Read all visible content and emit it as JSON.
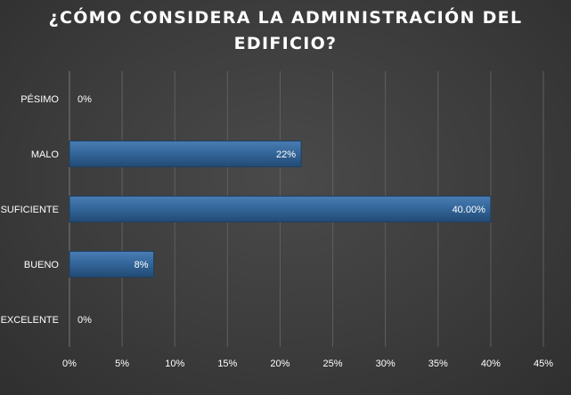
{
  "chart_data": {
    "type": "bar",
    "orientation": "horizontal",
    "title": "¿CÓMO CONSIDERA LA ADMINISTRACIÓN DEL EDIFICIO?",
    "categories": [
      "PÉSIMO",
      "MALO",
      "SUFICIENTE",
      "BUENO",
      "EXCELENTE"
    ],
    "values": [
      0,
      22,
      40,
      8,
      0
    ],
    "data_labels": [
      "0%",
      "22%",
      "40.00%",
      "8%",
      "0%"
    ],
    "xlim": [
      0,
      45
    ],
    "x_ticks": [
      "0%",
      "5%",
      "10%",
      "15%",
      "20%",
      "25%",
      "30%",
      "35%",
      "40%",
      "45%"
    ],
    "grid": true,
    "colors": {
      "bar": "#2e5c8c",
      "bar_highlight": "#4a7db3",
      "background": "#404040"
    }
  }
}
